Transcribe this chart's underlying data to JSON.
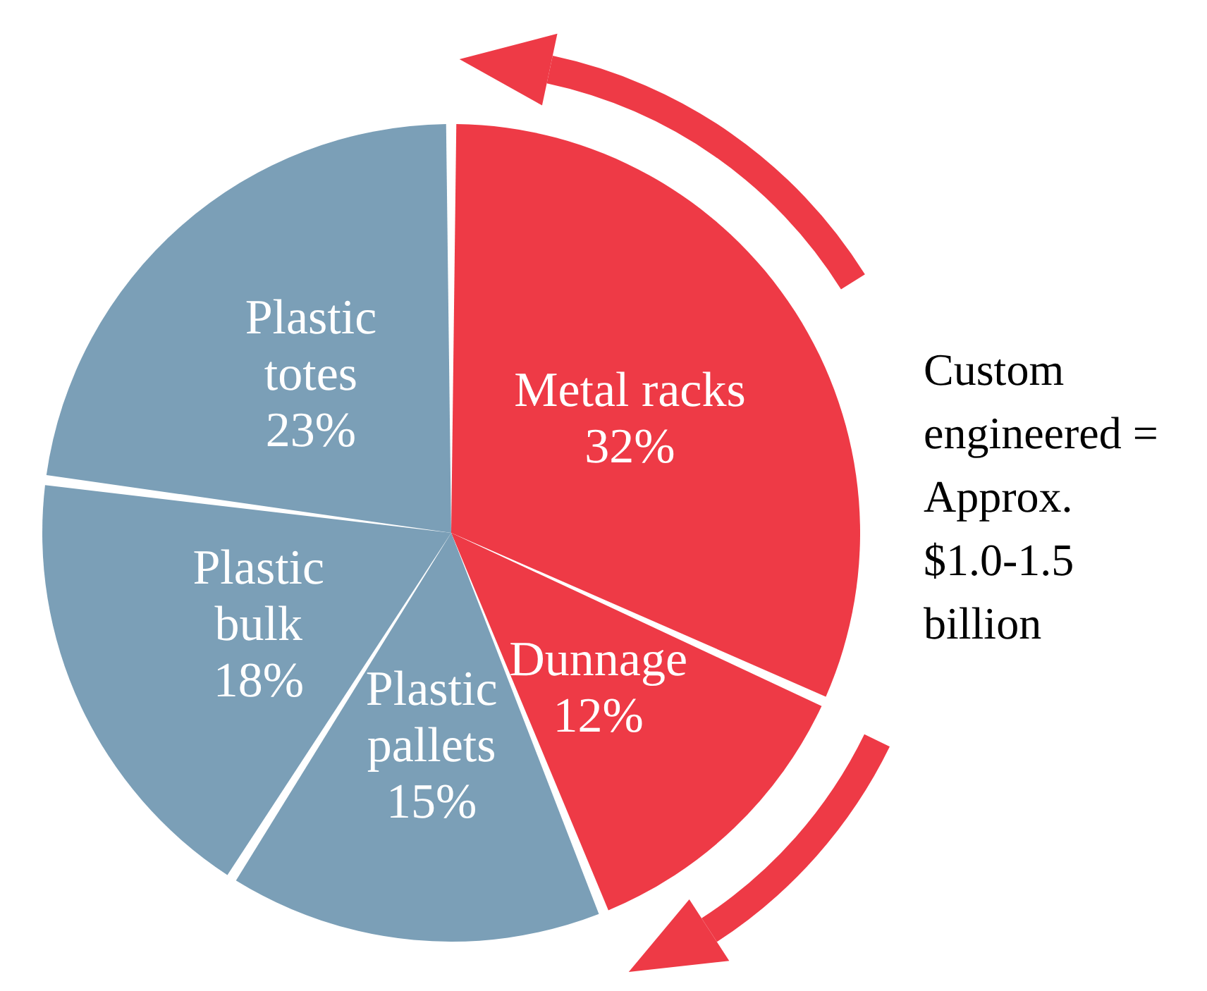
{
  "chart_data": {
    "type": "pie",
    "categories": [
      "Metal racks",
      "Dunnage",
      "Plastic pallets",
      "Plastic bulk",
      "Plastic totes"
    ],
    "values": [
      32,
      12,
      15,
      18,
      23
    ],
    "colors": [
      "#ee3a46",
      "#ee3a46",
      "#7b9fb7",
      "#7b9fb7",
      "#7b9fb7"
    ],
    "value_labels": [
      "32%",
      "12%",
      "15%",
      "18%",
      "23%"
    ],
    "annotations": [
      "Custom engineered = Approx. $1.0-1.5 billion"
    ]
  }
}
